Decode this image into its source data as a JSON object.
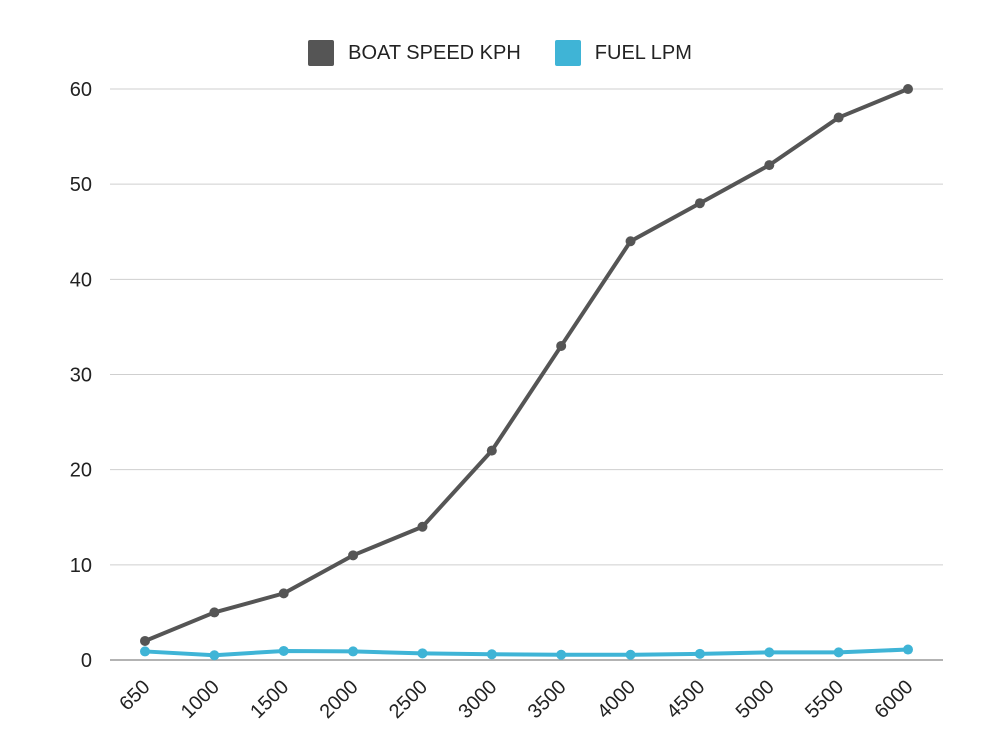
{
  "chart_data": {
    "type": "line",
    "title": "",
    "xlabel": "",
    "ylabel": "",
    "categories": [
      "650",
      "1000",
      "1500",
      "2000",
      "2500",
      "3000",
      "3500",
      "4000",
      "4500",
      "5000",
      "5500",
      "6000"
    ],
    "ylim": [
      0,
      60
    ],
    "yticks": [
      "0",
      "10",
      "20",
      "30",
      "40",
      "50",
      "60"
    ],
    "grid": true,
    "legend_position": "top-center",
    "series": [
      {
        "name": "BOAT SPEED KPH",
        "color": "#555555",
        "values": [
          2,
          5,
          7,
          11,
          14,
          22,
          33,
          44,
          48,
          52,
          57,
          60
        ]
      },
      {
        "name": "FUEL LPM",
        "color": "#3fb4d6",
        "values": [
          0.9,
          0.5,
          0.95,
          0.9,
          0.7,
          0.6,
          0.55,
          0.55,
          0.65,
          0.8,
          0.8,
          1.1
        ]
      }
    ]
  }
}
